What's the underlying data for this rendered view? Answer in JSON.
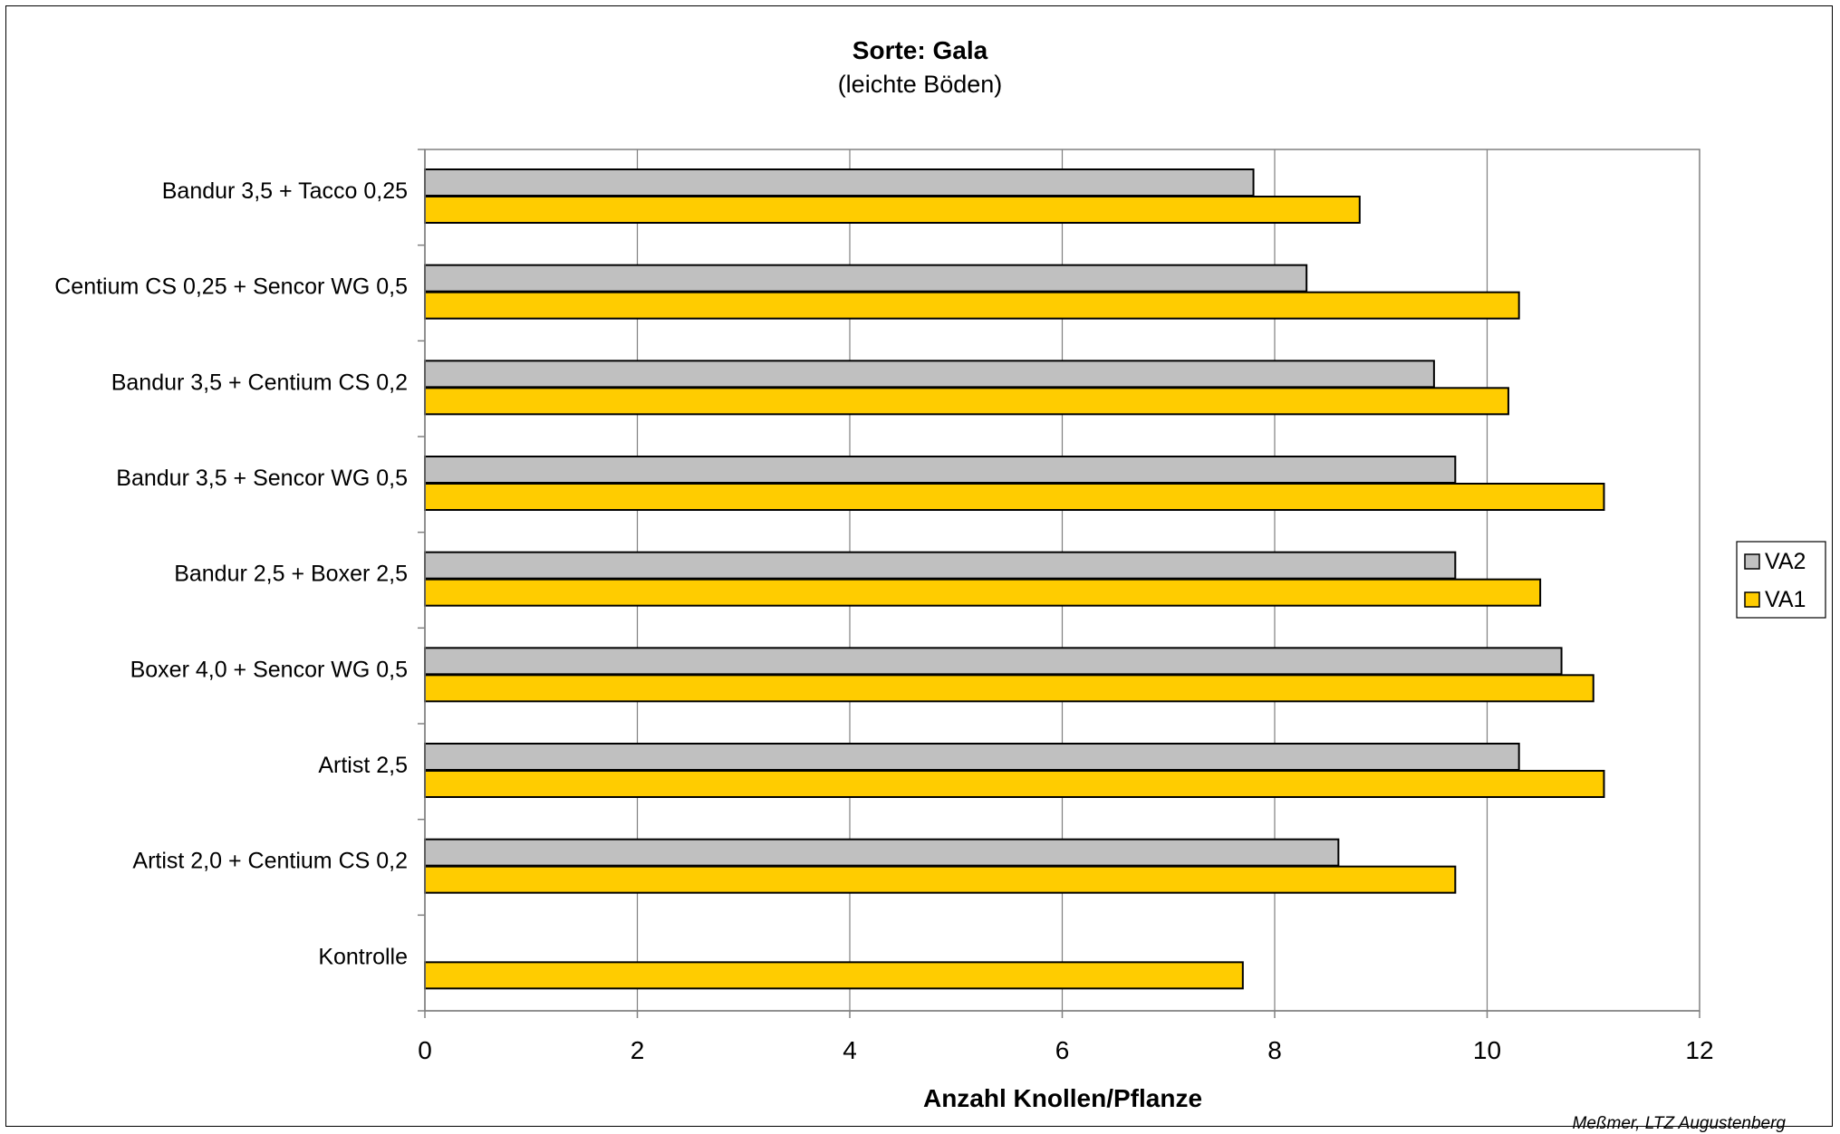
{
  "title": "Sorte: Gala",
  "subtitle": "(leichte Böden)",
  "credit": "Meßmer, LTZ Augustenberg",
  "colors": {
    "VA2": "#c0c0c0",
    "VA1": "#ffcc00",
    "grid": "#808080",
    "axis": "#808080"
  },
  "chart_data": {
    "type": "bar",
    "orientation": "horizontal",
    "categories": [
      "Bandur 3,5 + Tacco 0,25",
      "Centium CS 0,25 + Sencor WG 0,5",
      "Bandur 3,5 + Centium CS  0,2",
      "Bandur 3,5 + Sencor WG 0,5",
      "Bandur 2,5 + Boxer 2,5",
      "Boxer 4,0 + Sencor WG 0,5",
      "Artist 2,5",
      "Artist 2,0 + Centium CS 0,2",
      "Kontrolle"
    ],
    "series": [
      {
        "name": "VA2",
        "values": [
          7.8,
          8.3,
          9.5,
          9.7,
          9.7,
          10.7,
          10.3,
          8.6,
          null
        ]
      },
      {
        "name": "VA1",
        "values": [
          8.8,
          10.3,
          10.2,
          11.1,
          10.5,
          11.0,
          11.1,
          9.7,
          7.7
        ]
      }
    ],
    "xlabel": "Anzahl Knollen/Pflanze",
    "ylabel": "",
    "xlim": [
      0,
      12
    ],
    "xticks": [
      "0",
      "2",
      "4",
      "6",
      "8",
      "10",
      "12"
    ],
    "grid": true,
    "legend_position": "right"
  }
}
